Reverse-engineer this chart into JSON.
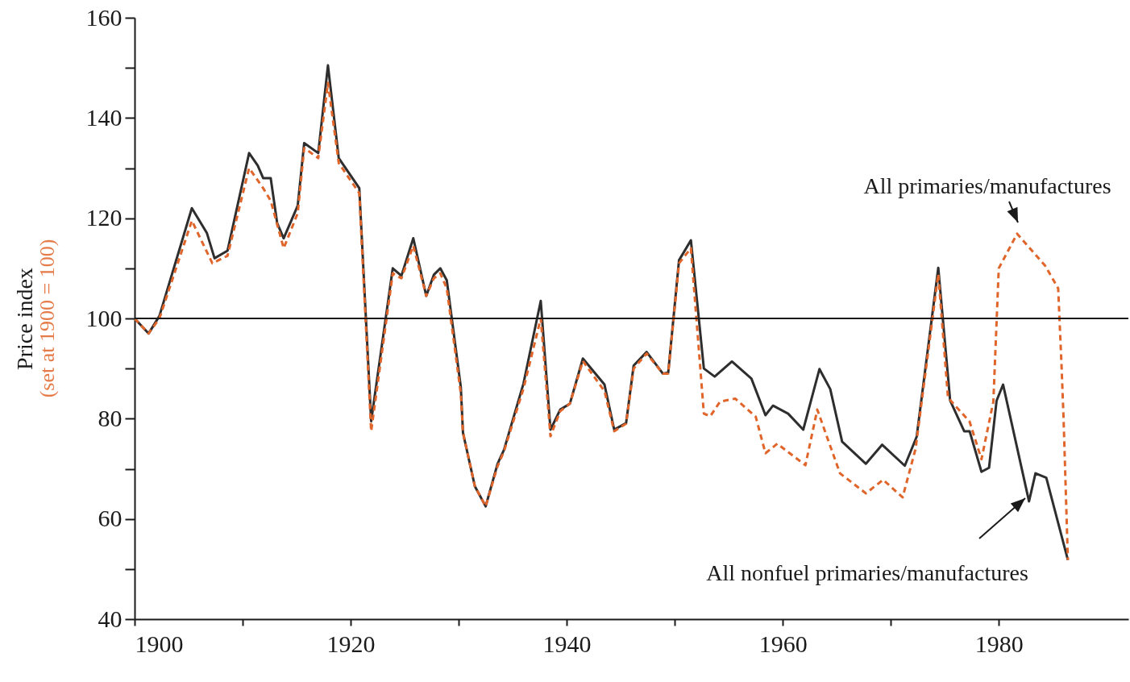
{
  "chart_data": {
    "type": "line",
    "ylabel": "Price index",
    "annotations": [
      "(set at 1900 = 100)"
    ],
    "xlim": [
      1900,
      1992
    ],
    "xticks": [
      1900,
      {
        "value": 1910,
        "label": null
      },
      1920,
      {
        "value": 1930,
        "label": null
      },
      1940,
      {
        "value": 1950,
        "label": null
      },
      1960,
      {
        "value": 1970,
        "label": null
      },
      1980
    ],
    "ylim": [
      40,
      160
    ],
    "yticks": [
      40,
      {
        "value": 50,
        "label": null
      },
      60,
      {
        "value": 70,
        "label": null
      },
      80,
      {
        "value": 90,
        "label": null
      },
      100,
      {
        "value": 110,
        "label": null
      },
      120,
      {
        "value": 130,
        "label": null
      },
      140,
      {
        "value": 150,
        "label": null
      },
      160
    ],
    "grid": false,
    "legend": false,
    "marker": "none",
    "ref_lines": [
      {
        "axis": "y",
        "value": 100,
        "color": "#1a1a1a",
        "line_style": "solid"
      }
    ],
    "series": [
      {
        "name": "All nonfuel primaries/manufactures",
        "color": "#2e2e2e",
        "line_style": "solid",
        "x": [
          1900,
          1901.3,
          1902.3,
          1905.3,
          1906.7,
          1907.4,
          1908.6,
          1910.6,
          1911.4,
          1911.9,
          1912.6,
          1913.2,
          1913.8,
          1915.1,
          1915.7,
          1917,
          1917.9,
          1918.9,
          1920.8,
          1921.9,
          1923.9,
          1924.7,
          1925.8,
          1927,
          1927.7,
          1928.3,
          1928.9,
          1930.2,
          1930.4,
          1931.5,
          1932.5,
          1933.6,
          1934.2,
          1936,
          1937.6,
          1938.5,
          1939.4,
          1940.3,
          1941.5,
          1943.5,
          1944.4,
          1945.5,
          1946.2,
          1947.4,
          1948.9,
          1949.4,
          1950.4,
          1951.5,
          1952.7,
          1953.7,
          1955.3,
          1957.1,
          1958.4,
          1959.1,
          1960.5,
          1961.9,
          1963.4,
          1964.4,
          1965.5,
          1967.7,
          1969.2,
          1971.3,
          1972.4,
          1974.4,
          1975.5,
          1976.8,
          1977.3,
          1978.4,
          1979.1,
          1979.8,
          1980.4,
          1982.8,
          1983.4,
          1984.4,
          1986.4
        ],
        "values": [
          100,
          97,
          100.5,
          122,
          117,
          112,
          113.5,
          133,
          130.5,
          128,
          128,
          119,
          116,
          122.5,
          135,
          133,
          150.5,
          132,
          126,
          79.5,
          110,
          108.5,
          116,
          104.5,
          108.7,
          110,
          107.6,
          86.3,
          77.2,
          66.5,
          62.5,
          71,
          73.8,
          87,
          103.5,
          77.8,
          81.8,
          83,
          92,
          86.8,
          77.8,
          79.1,
          90.6,
          93.3,
          89,
          89.2,
          111.6,
          115.6,
          90,
          88.4,
          91.4,
          88,
          80.7,
          82.6,
          81,
          77.8,
          89.9,
          85.9,
          75.4,
          71,
          74.8,
          70.6,
          76.4,
          110.1,
          83.6,
          77.5,
          77.5,
          69.4,
          70.2,
          83.6,
          86.8,
          63.5,
          69.1,
          68.2,
          51.8
        ]
      },
      {
        "name": "All primaries/manufactures",
        "color": "#e0652a",
        "line_style": "dashed",
        "x": [
          1900,
          1901.3,
          1902.3,
          1905.3,
          1907.2,
          1908.6,
          1910.6,
          1911.9,
          1912.6,
          1913.8,
          1915.1,
          1915.7,
          1917,
          1917.9,
          1918.9,
          1920.8,
          1921.9,
          1923.9,
          1924.7,
          1925.8,
          1927,
          1927.7,
          1928.3,
          1928.9,
          1930.2,
          1930.4,
          1931.5,
          1932.5,
          1933.6,
          1934.2,
          1936,
          1937.6,
          1938.5,
          1939.4,
          1940.3,
          1941.5,
          1943.5,
          1944.4,
          1945.5,
          1946.2,
          1947.4,
          1948.9,
          1949.4,
          1950.4,
          1951.5,
          1952.7,
          1953.3,
          1954.2,
          1955.6,
          1957.5,
          1958.4,
          1959.5,
          1962.1,
          1963.2,
          1965.3,
          1967.7,
          1969.3,
          1971.1,
          1972.3,
          1974.4,
          1975.3,
          1977.3,
          1978.4,
          1979.5,
          1980,
          1981.7,
          1984.3,
          1985.5,
          1985.8,
          1986,
          1986.4
        ],
        "values": [
          100,
          97,
          100,
          119.5,
          111,
          112.5,
          130,
          126,
          123.5,
          114,
          121,
          134,
          132,
          147,
          131,
          125,
          77.5,
          109,
          108,
          114.5,
          104.5,
          108,
          109,
          106,
          85,
          77.2,
          66.5,
          62.5,
          70.5,
          73.5,
          86,
          100,
          76.5,
          81.5,
          83,
          91.5,
          85.5,
          77.5,
          79,
          90,
          93,
          89,
          89,
          111,
          114,
          81,
          80.5,
          83.4,
          84,
          80.4,
          73.1,
          75,
          70.7,
          81.8,
          69.1,
          65.1,
          67.8,
          64.3,
          74,
          108.9,
          84.2,
          79.4,
          71.9,
          83.4,
          110,
          116.9,
          110.5,
          106,
          91.2,
          80,
          51.8
        ]
      }
    ]
  }
}
